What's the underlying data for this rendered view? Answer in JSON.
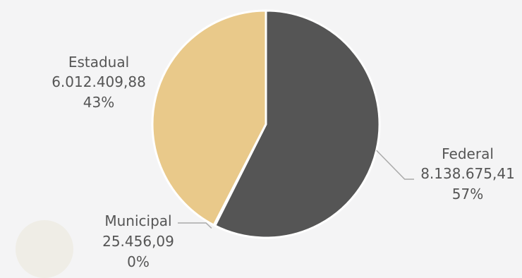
{
  "chart_data": {
    "type": "pie",
    "slices": [
      {
        "label": "Federal",
        "value_text": "8.138.675,41",
        "value": 8138675.41,
        "percent_text": "57%",
        "color": "#555555"
      },
      {
        "label": "Municipal",
        "value_text": "25.456,09",
        "value": 25456.09,
        "percent_text": "0%",
        "color": "#c9a96e"
      },
      {
        "label": "Estadual",
        "value_text": "6.012.409,88",
        "value": 6012409.88,
        "percent_text": "43%",
        "color": "#e9c98a"
      }
    ],
    "label_color": "#555555",
    "leader_color": "#aaaaaa",
    "start_angle": "12 o'clock",
    "direction": "clockwise"
  }
}
